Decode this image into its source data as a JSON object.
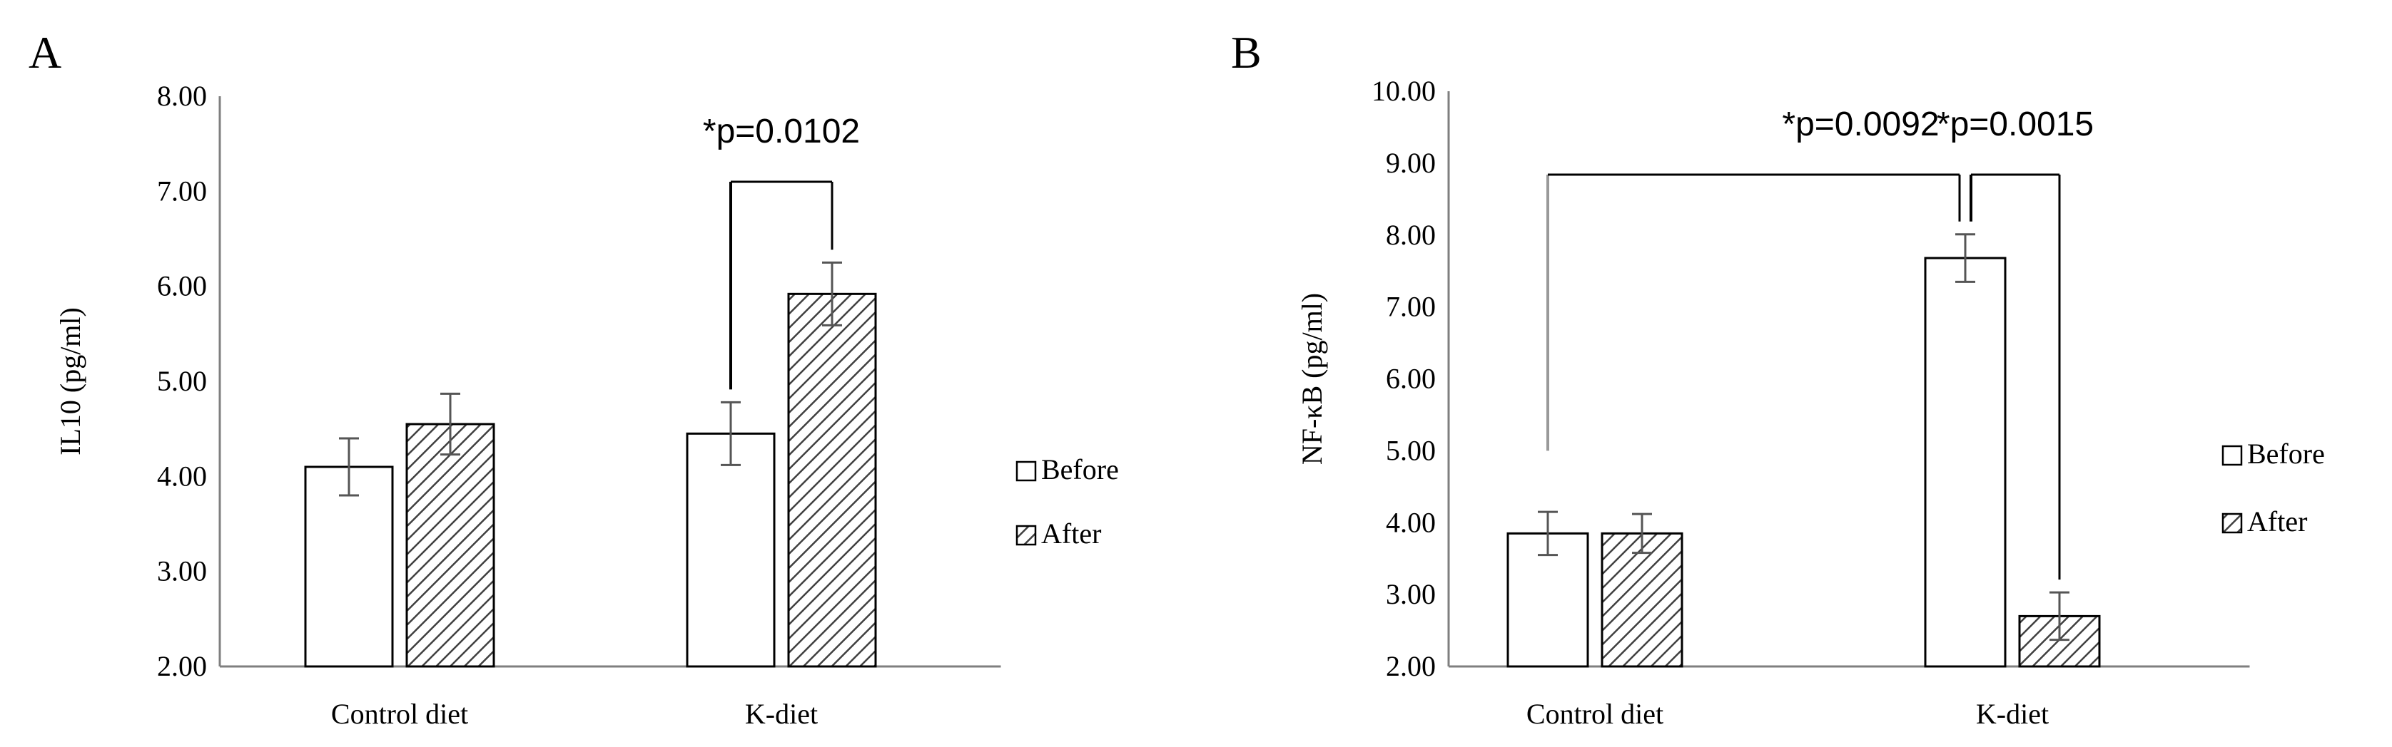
{
  "chart_data": [
    {
      "type": "bar",
      "panel": "A",
      "categories": [
        "Control diet",
        "K-diet"
      ],
      "series": [
        {
          "name": "Before",
          "values": [
            4.1,
            4.45
          ],
          "error": [
            0.3,
            0.33
          ],
          "pattern": "open"
        },
        {
          "name": "After",
          "values": [
            4.55,
            5.92
          ],
          "error": [
            0.32,
            0.33
          ],
          "pattern": "hatched"
        }
      ],
      "title": "",
      "xlabel": "",
      "ylabel": "IL10 (pg/ml)",
      "ylim": [
        2.0,
        8.0
      ],
      "yticks": [
        "2.00",
        "3.00",
        "4.00",
        "5.00",
        "6.00",
        "7.00",
        "8.00"
      ],
      "grid": false,
      "legend": "right",
      "annotations": [
        {
          "text": "*p=0.0102",
          "from": {
            "category": 1,
            "series": 0
          },
          "to": {
            "category": 1,
            "series": 1
          }
        }
      ]
    },
    {
      "type": "bar",
      "panel": "B",
      "categories": [
        "Control diet",
        "K-diet"
      ],
      "series": [
        {
          "name": "Before",
          "values": [
            3.85,
            7.68
          ],
          "error": [
            0.3,
            0.33
          ],
          "pattern": "open"
        },
        {
          "name": "After",
          "values": [
            3.85,
            2.7
          ],
          "error": [
            0.27,
            0.33
          ],
          "pattern": "hatched"
        }
      ],
      "title": "",
      "xlabel": "",
      "ylabel": "NF-κB (pg/ml)",
      "ylim": [
        2.0,
        10.0
      ],
      "yticks": [
        "2.00",
        "3.00",
        "4.00",
        "5.00",
        "6.00",
        "7.00",
        "8.00",
        "9.00",
        "10.00"
      ],
      "grid": false,
      "legend": "right",
      "annotations": [
        {
          "text": "*p=0.0092",
          "from": {
            "category": 0,
            "series": 0
          },
          "to": {
            "category": 1,
            "series": 0
          }
        },
        {
          "text": "*p=0.0015",
          "from": {
            "category": 1,
            "series": 0
          },
          "to": {
            "category": 1,
            "series": 1
          }
        }
      ]
    }
  ]
}
